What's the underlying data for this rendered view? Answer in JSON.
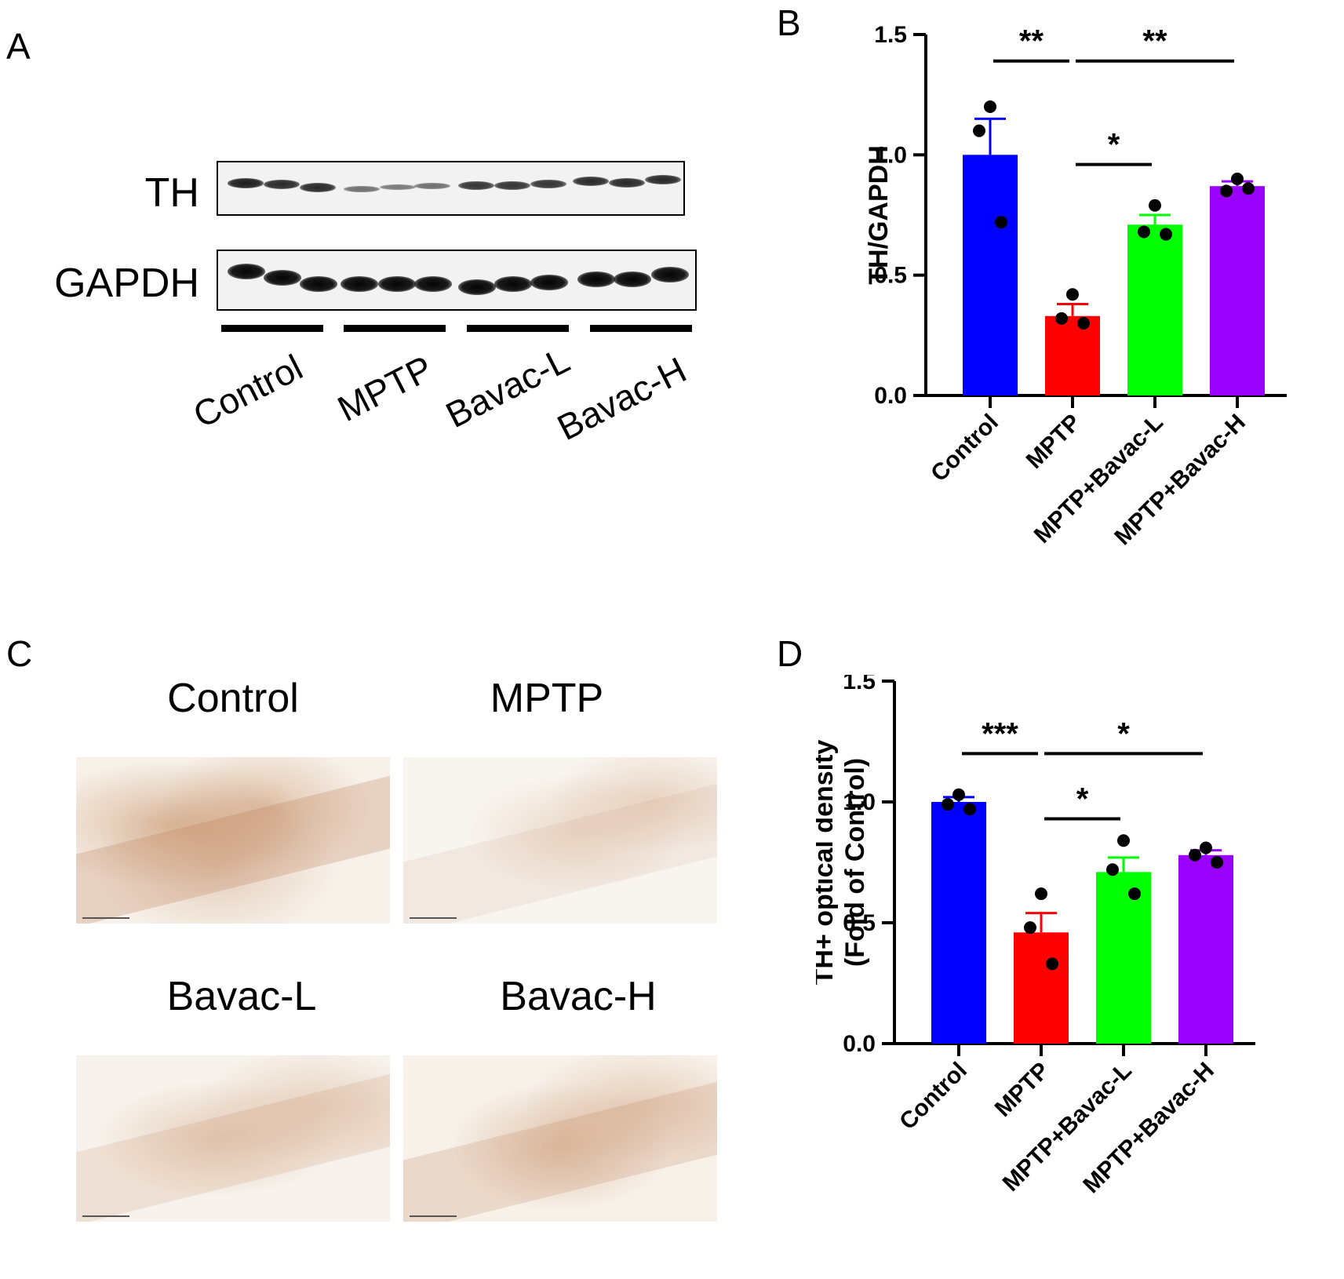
{
  "panels": {
    "a": "A",
    "b": "B",
    "c": "C",
    "d": "D"
  },
  "blot": {
    "rows": [
      "TH",
      "GAPDH"
    ],
    "groups": [
      "Control",
      "MPTP",
      "Bavac-L",
      "Bavac-H"
    ]
  },
  "ihc": {
    "titles": [
      "Control",
      "MPTP",
      "Bavac-L",
      "Bavac-H"
    ]
  },
  "chart_data": [
    {
      "type": "bar",
      "panel": "B",
      "categories": [
        "Control",
        "MPTP",
        "MPTP+Bavac-L",
        "MPTP+Bavac-H"
      ],
      "values": [
        1.0,
        0.33,
        0.71,
        0.87
      ],
      "errors": [
        0.15,
        0.05,
        0.04,
        0.02
      ],
      "points": [
        [
          1.2,
          1.1,
          0.72
        ],
        [
          0.42,
          0.32,
          0.3
        ],
        [
          0.79,
          0.68,
          0.67
        ],
        [
          0.9,
          0.85,
          0.86
        ]
      ],
      "colors": [
        "#0000FF",
        "#FF0000",
        "#00FF00",
        "#9900FF"
      ],
      "ylabel": "TH/GAPDH",
      "ylim": [
        0,
        1.5
      ],
      "yticks": [
        "0.0",
        "0.5",
        "1.0",
        "1.5"
      ],
      "significance": [
        {
          "from": 0,
          "to": 1,
          "label": "**",
          "y": 1.39
        },
        {
          "from": 1,
          "to": 3,
          "label": "**",
          "y": 1.39
        },
        {
          "from": 1,
          "to": 2,
          "label": "*",
          "y": 0.96
        }
      ]
    },
    {
      "type": "bar",
      "panel": "D",
      "categories": [
        "Control",
        "MPTP",
        "MPTP+Bavac-L",
        "MPTP+Bavac-H"
      ],
      "values": [
        1.0,
        0.46,
        0.71,
        0.78
      ],
      "errors": [
        0.02,
        0.08,
        0.06,
        0.02
      ],
      "points": [
        [
          1.03,
          0.99,
          0.97
        ],
        [
          0.62,
          0.48,
          0.33
        ],
        [
          0.84,
          0.72,
          0.62
        ],
        [
          0.81,
          0.78,
          0.75
        ]
      ],
      "colors": [
        "#0000FF",
        "#FF0000",
        "#00FF00",
        "#9900FF"
      ],
      "ylabel": "TH+ optical density",
      "ylabel2": "(Fold of Control)",
      "ylim": [
        0,
        1.5
      ],
      "yticks": [
        "0.0",
        "0.5",
        "1.0",
        "1.5"
      ],
      "significance": [
        {
          "from": 0,
          "to": 1,
          "label": "***",
          "y": 1.2
        },
        {
          "from": 1,
          "to": 3,
          "label": "*",
          "y": 1.2
        },
        {
          "from": 1,
          "to": 2,
          "label": "*",
          "y": 0.93
        }
      ]
    }
  ]
}
